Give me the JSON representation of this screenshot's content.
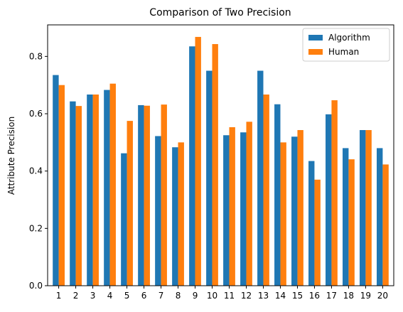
{
  "chart_data": {
    "type": "bar",
    "title": "Comparison of Two Precision",
    "xlabel": "",
    "ylabel": "Attribute Precision",
    "ylim": [
      0,
      0.91
    ],
    "yticks": [
      0.0,
      0.2,
      0.4,
      0.6,
      0.8
    ],
    "ytick_labels": [
      "0.0",
      "0.2",
      "0.4",
      "0.6",
      "0.8"
    ],
    "categories": [
      "1",
      "2",
      "3",
      "4",
      "5",
      "6",
      "7",
      "8",
      "9",
      "10",
      "11",
      "12",
      "13",
      "14",
      "15",
      "16",
      "17",
      "18",
      "19",
      "20"
    ],
    "series": [
      {
        "name": "Algorithm",
        "color": "#1f77b4",
        "values": [
          0.735,
          0.643,
          0.667,
          0.683,
          0.462,
          0.63,
          0.522,
          0.483,
          0.835,
          0.75,
          0.525,
          0.535,
          0.75,
          0.633,
          0.52,
          0.435,
          0.598,
          0.48,
          0.543,
          0.48
        ]
      },
      {
        "name": "Human",
        "color": "#ff7f0e",
        "values": [
          0.7,
          0.627,
          0.667,
          0.705,
          0.575,
          0.628,
          0.632,
          0.5,
          0.868,
          0.843,
          0.553,
          0.572,
          0.667,
          0.5,
          0.543,
          0.37,
          0.647,
          0.441,
          0.543,
          0.423
        ]
      }
    ],
    "grid": false,
    "legend": "top-right"
  }
}
